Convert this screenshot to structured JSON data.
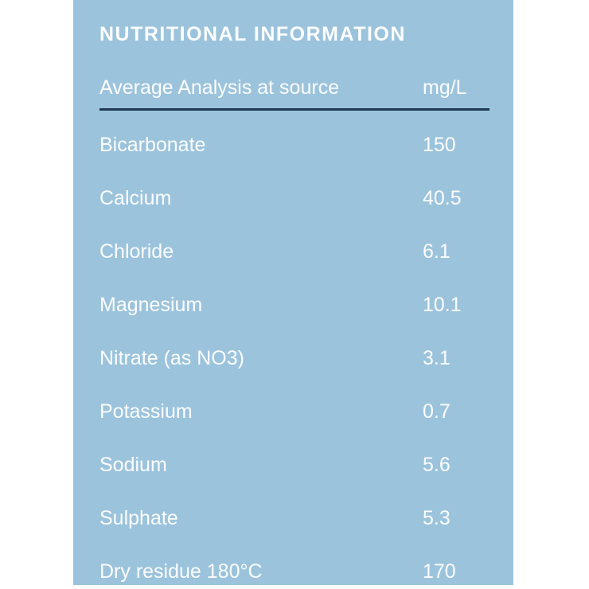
{
  "theme": {
    "page_background": "#ffffff",
    "panel_background": "#9cc3dc",
    "text_color": "#fbfdfe",
    "divider_color": "#1e3a52"
  },
  "panel": {
    "title": "NUTRITIONAL INFORMATION"
  },
  "table": {
    "header": {
      "label": "Average Analysis at source",
      "unit": "mg/L"
    },
    "rows": [
      {
        "name": "Bicarbonate",
        "value": "150"
      },
      {
        "name": "Calcium",
        "value": "40.5"
      },
      {
        "name": "Chloride",
        "value": "6.1"
      },
      {
        "name": "Magnesium",
        "value": "10.1"
      },
      {
        "name": "Nitrate (as NO3)",
        "value": "3.1"
      },
      {
        "name": "Potassium",
        "value": "0.7"
      },
      {
        "name": "Sodium",
        "value": "5.6"
      },
      {
        "name": "Sulphate",
        "value": "5.3"
      },
      {
        "name": "Dry residue 180°C",
        "value": "170"
      }
    ]
  }
}
